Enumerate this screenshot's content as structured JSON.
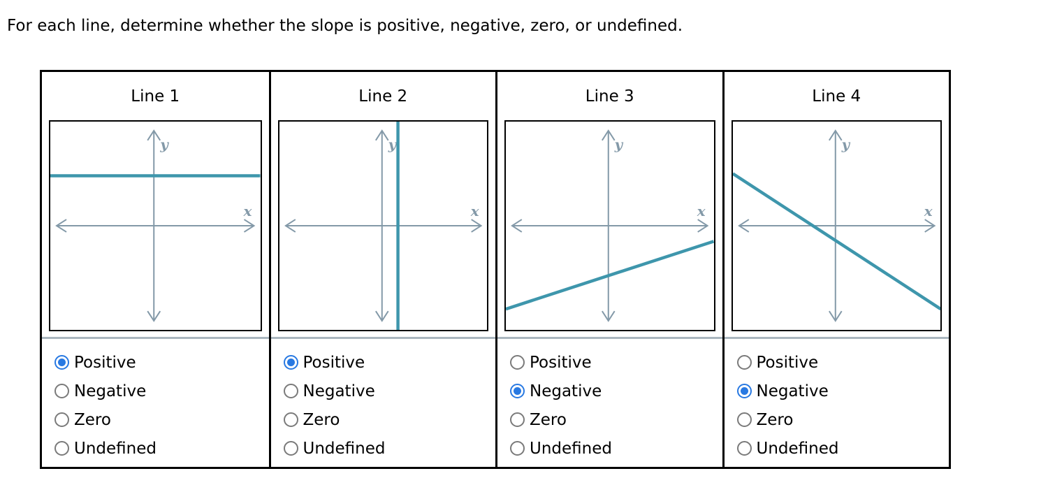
{
  "title": "For each line, determine whether the slope is positive, negative, zero, or undefined.",
  "axis_labels": {
    "x": "x",
    "y": "y"
  },
  "radio_options": [
    "Positive",
    "Negative",
    "Zero",
    "Undefined"
  ],
  "colors": {
    "plot_line": "#3e96ac",
    "axis": "#8399a8",
    "radio_selected": "#2879e2",
    "radio_idle": "#7a7a7a",
    "row_separator": "#aab6bf",
    "table_border": "#000000"
  },
  "panels": [
    {
      "title": "Line 1",
      "graph": {
        "line_direction": "horizontal",
        "line": {
          "x1": 0.0,
          "y1": 0.26,
          "x2": 1.0,
          "y2": 0.26
        }
      },
      "selected_index": 0,
      "selected_label": "Positive"
    },
    {
      "title": "Line 2",
      "graph": {
        "line_direction": "vertical",
        "line": {
          "x1": 0.57,
          "y1": 0.0,
          "x2": 0.57,
          "y2": 1.0
        }
      },
      "selected_index": 0,
      "selected_label": "Positive"
    },
    {
      "title": "Line 3",
      "graph": {
        "line_direction": "rising",
        "line": {
          "x1": 0.0,
          "y1": 0.9,
          "x2": 1.0,
          "y2": 0.575
        }
      },
      "selected_index": 1,
      "selected_label": "Negative"
    },
    {
      "title": "Line 4",
      "graph": {
        "line_direction": "falling",
        "line": {
          "x1": 0.0,
          "y1": 0.25,
          "x2": 1.0,
          "y2": 0.9
        }
      },
      "selected_index": 1,
      "selected_label": "Negative"
    }
  ]
}
